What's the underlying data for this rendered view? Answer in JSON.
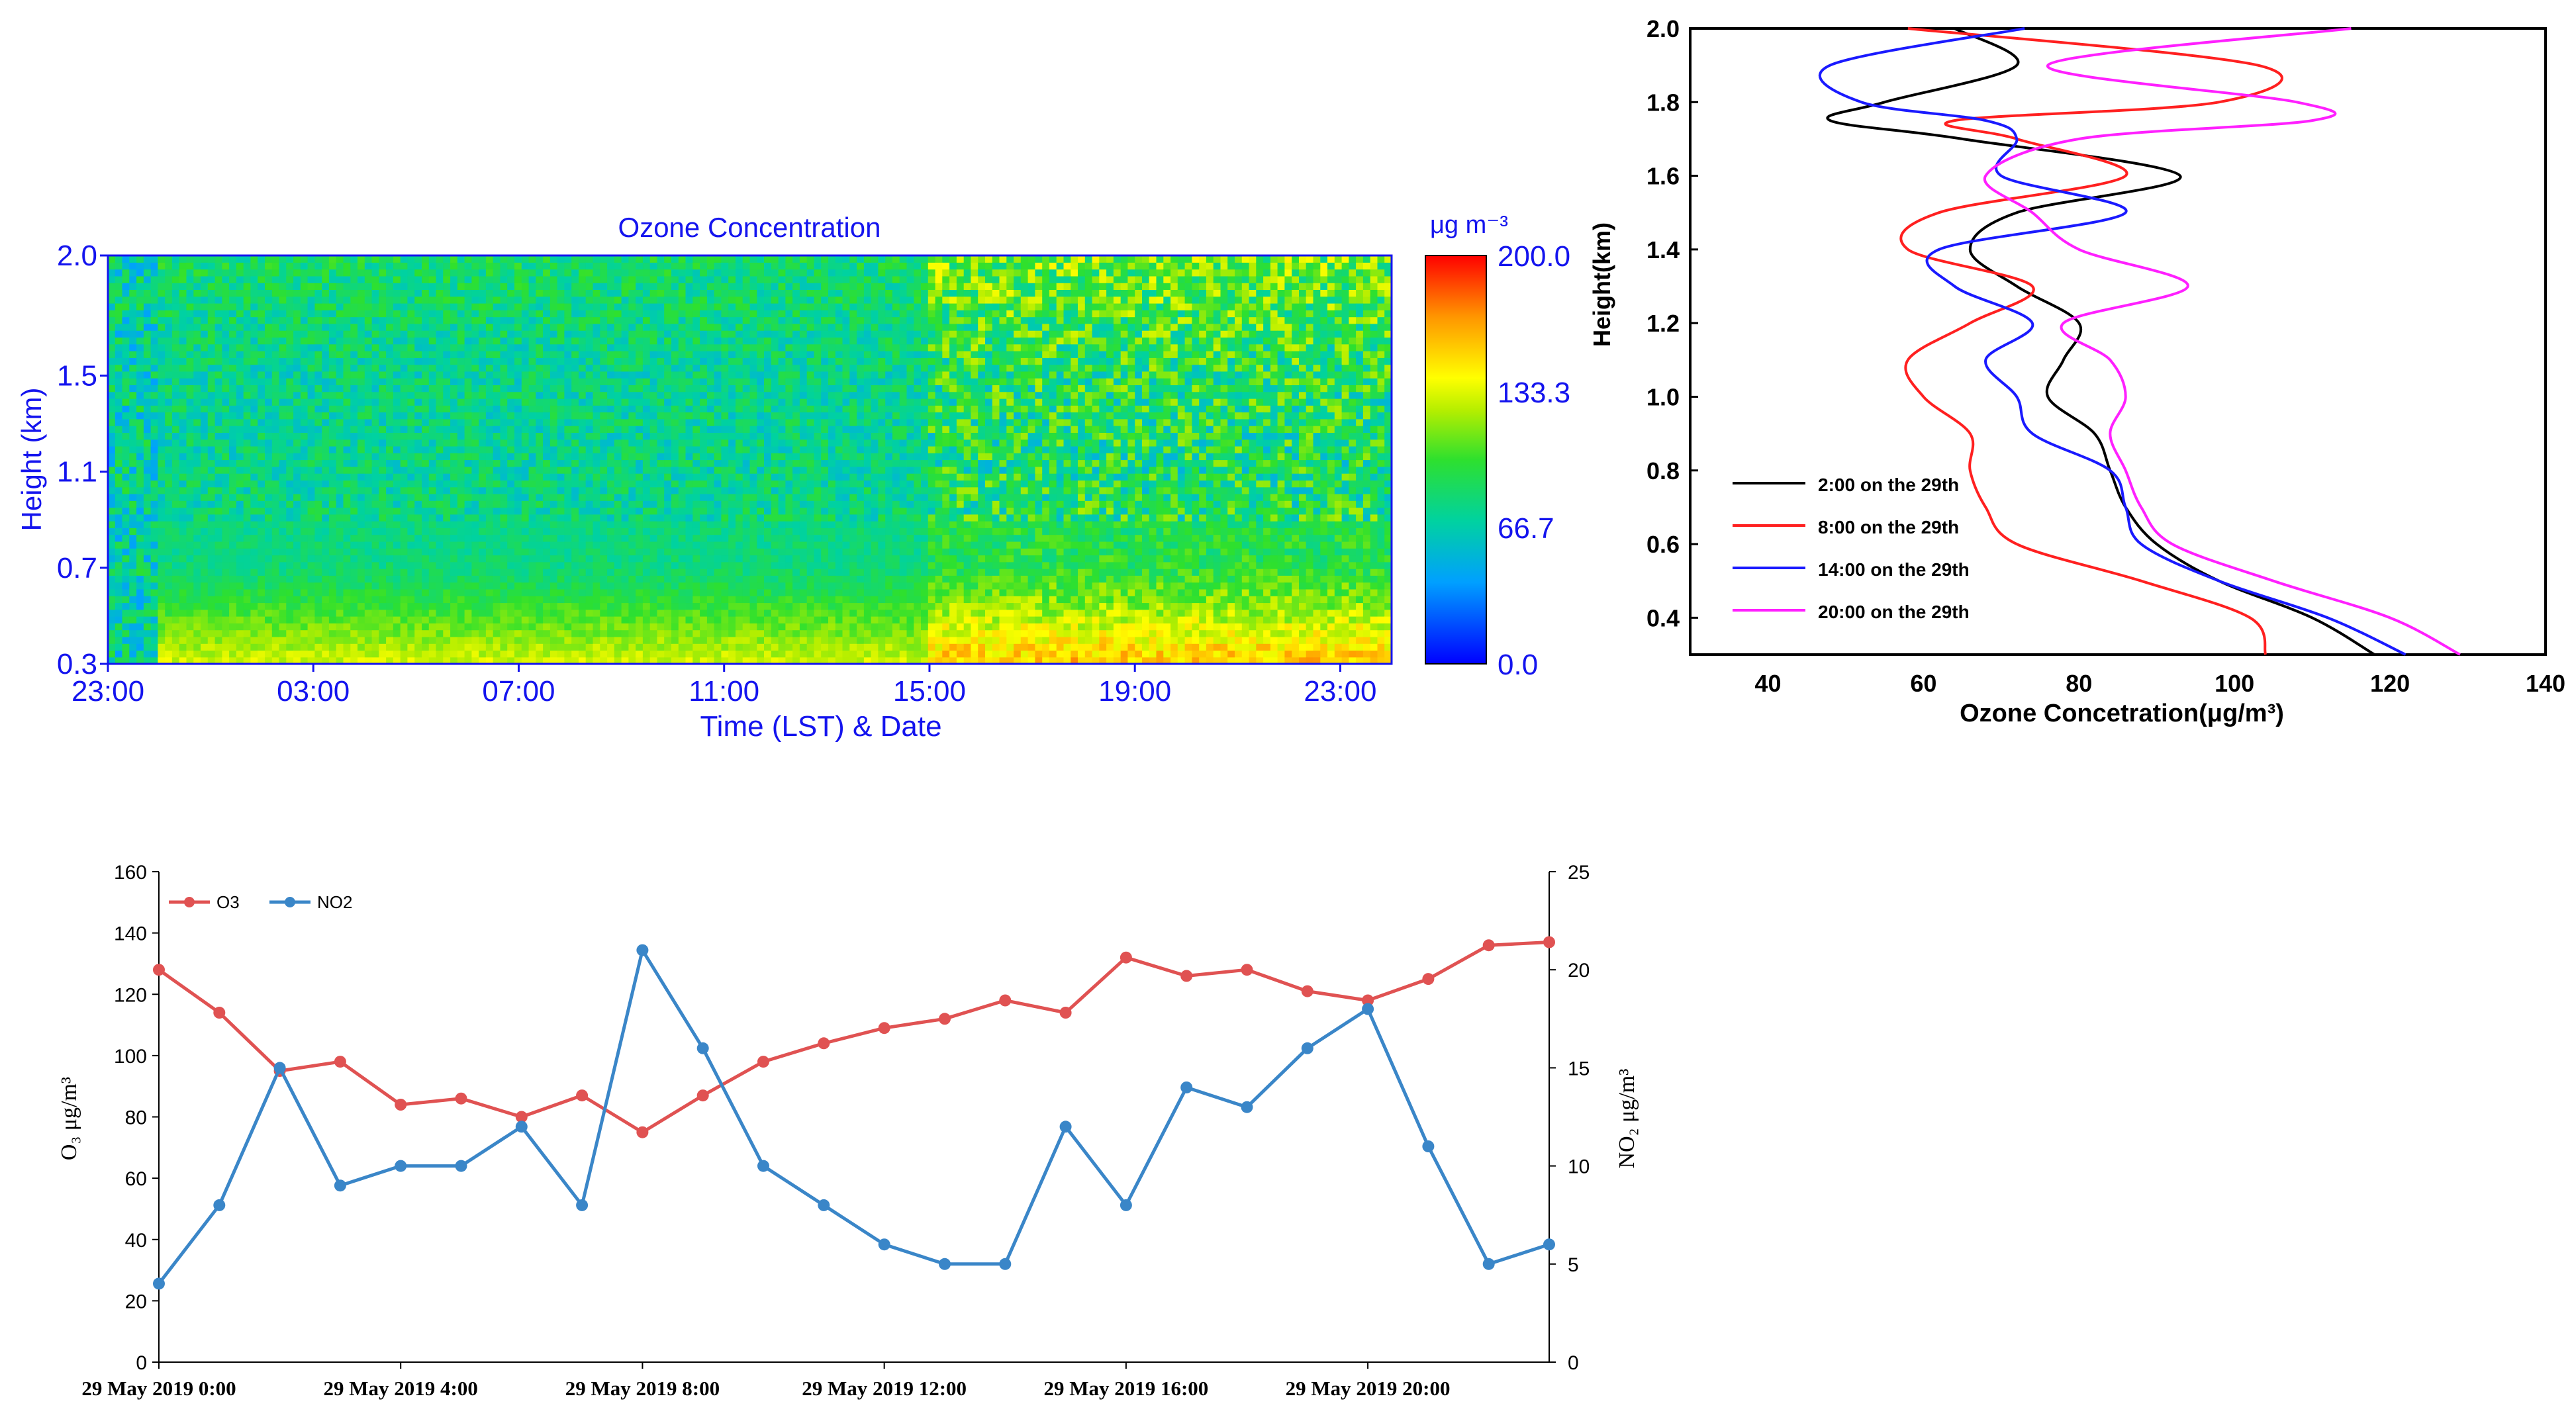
{
  "colors": {
    "blue_text": "#1414ee",
    "black": "#000000",
    "red": "#ff2020",
    "blue": "#1a1aff",
    "magenta": "#ff20ff",
    "o3": "#e05252",
    "no2": "#3a86c8"
  },
  "chart_data": [
    {
      "type": "heatmap",
      "title": "Ozone Concentration",
      "xlabel": "Time (LST) & Date",
      "ylabel": "Height (km)",
      "x_ticks": [
        "23:00",
        "03:00",
        "07:00",
        "11:00",
        "15:00",
        "19:00",
        "23:00"
      ],
      "x_tick_hours": [
        0,
        4,
        8,
        12,
        16,
        20,
        24
      ],
      "x_range_hours": [
        0,
        25
      ],
      "y_ticks": [
        "2.0",
        "1.5",
        "1.1",
        "0.7",
        "0.3"
      ],
      "y_tick_values": [
        2.0,
        1.5,
        1.1,
        0.7,
        0.3
      ],
      "y_range": [
        0.3,
        2.0
      ],
      "colorbar": {
        "label": "μg m⁻³",
        "ticks": [
          "200.0",
          "133.3",
          "66.7",
          "0.0"
        ],
        "range": [
          0,
          200
        ]
      },
      "description_rows_mean": [
        {
          "height": 0.35,
          "before_15": 125,
          "after_15": 150
        },
        {
          "height": 0.5,
          "before_15": 105,
          "after_15": 125
        },
        {
          "height": 0.7,
          "before_15": 80,
          "after_15": 95
        },
        {
          "height": 1.1,
          "before_15": 75,
          "after_15": 85
        },
        {
          "height": 1.5,
          "before_15": 75,
          "after_15": 90
        },
        {
          "height": 2.0,
          "before_15": 85,
          "after_15": 110
        }
      ]
    },
    {
      "type": "line",
      "xlabel": "Ozone Concetration(μg/m³)",
      "ylabel": "Height(km)",
      "xlim": [
        30,
        140
      ],
      "ylim": [
        0.3,
        2.0
      ],
      "x_ticks": [
        "40",
        "60",
        "80",
        "100",
        "120",
        "140"
      ],
      "y_ticks": [
        "2.0",
        "1.8",
        "1.6",
        "1.4",
        "1.2",
        "1.0",
        "0.8",
        "0.6",
        "0.4"
      ],
      "legend": "lower-left",
      "y": [
        0.3,
        0.4,
        0.5,
        0.6,
        0.7,
        0.8,
        0.9,
        1.0,
        1.1,
        1.2,
        1.3,
        1.4,
        1.5,
        1.6,
        1.7,
        1.75,
        1.8,
        1.9,
        2.0
      ],
      "series": [
        {
          "name": "2:00 on the 29th",
          "x": [
            118,
            110,
            98,
            90,
            86,
            84,
            82,
            76,
            78,
            80,
            72,
            66,
            72,
            93,
            65,
            48,
            55,
            72,
            64
          ]
        },
        {
          "name": "8:00 on the 29th",
          "x": [
            104,
            102,
            88,
            72,
            68,
            66,
            66,
            60,
            58,
            66,
            74,
            58,
            62,
            86,
            72,
            64,
            98,
            103,
            58
          ]
        },
        {
          "name": "14:00 on the 29th",
          "x": [
            122,
            112,
            98,
            88,
            86,
            84,
            74,
            72,
            68,
            74,
            64,
            62,
            86,
            70,
            72,
            68,
            52,
            48,
            73
          ]
        },
        {
          "name": "20:00 on the 29th",
          "x": [
            129,
            120,
            105,
            92,
            88,
            86,
            84,
            86,
            84,
            78,
            94,
            80,
            74,
            68,
            80,
            110,
            108,
            76,
            115
          ]
        }
      ]
    },
    {
      "type": "line",
      "xlabel": "",
      "ylabel": "O₃ μg/m³",
      "y2label": "NO₂ μg/m³",
      "ylim": [
        0,
        160
      ],
      "y2lim": [
        0,
        25
      ],
      "y_ticks": [
        "0",
        "20",
        "40",
        "60",
        "80",
        "100",
        "120",
        "140",
        "160"
      ],
      "y2_ticks": [
        "0",
        "5",
        "10",
        "15",
        "20",
        "25"
      ],
      "x_ticks": [
        "29 May 2019 0:00",
        "29 May 2019 4:00",
        "29 May 2019 8:00",
        "29 May 2019 12:00",
        "29 May 2019 16:00",
        "29 May 2019 20:00"
      ],
      "x_tick_hours": [
        0,
        4,
        8,
        12,
        16,
        20
      ],
      "x_hours": [
        0,
        1,
        2,
        3,
        4,
        5,
        6,
        7,
        8,
        9,
        10,
        11,
        12,
        13,
        14,
        15,
        16,
        17,
        18,
        19,
        20,
        21,
        22,
        23
      ],
      "legend": "top-left",
      "series": [
        {
          "name": "O3",
          "axis": "left",
          "values": [
            128,
            114,
            95,
            98,
            84,
            86,
            80,
            87,
            75,
            87,
            98,
            104,
            109,
            112,
            118,
            114,
            132,
            126,
            128,
            121,
            118,
            125,
            136,
            137
          ]
        },
        {
          "name": "NO2",
          "axis": "right",
          "values": [
            4,
            8,
            15,
            9,
            10,
            10,
            12,
            8,
            21,
            16,
            10,
            8,
            6,
            5,
            5,
            12,
            8,
            14,
            13,
            16,
            18,
            11,
            5,
            6
          ]
        }
      ]
    }
  ]
}
